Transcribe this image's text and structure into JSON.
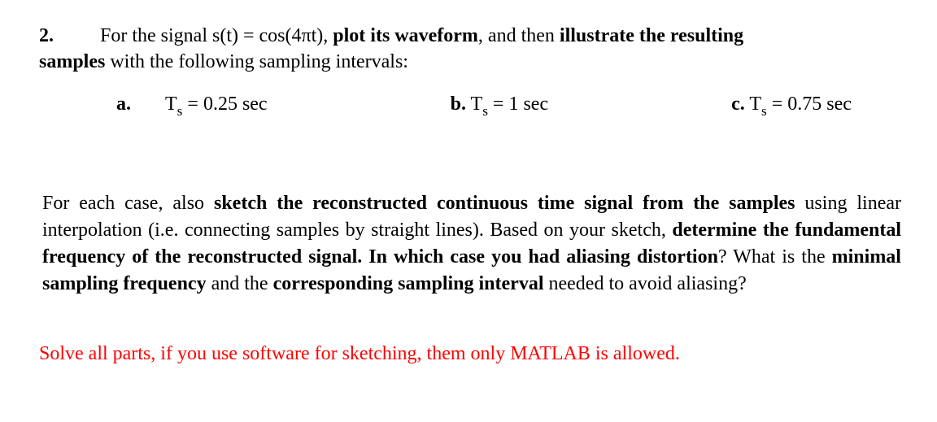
{
  "question": {
    "number": "2.",
    "line1_pre": "For the signal s(t) = cos(4πt), ",
    "line1_bold1": "plot its waveform",
    "line1_mid": ", and then ",
    "line1_bold2": "illustrate the resulting",
    "line2_bold": "samples",
    "line2_rest": " with the following sampling intervals:"
  },
  "options": {
    "a_label": "a.",
    "a_text_pre": "T",
    "a_text_sub": "s",
    "a_text_post": " = 0.25 sec",
    "b_label": "b.",
    "b_text_pre": " T",
    "b_text_sub": "s",
    "b_text_post": " = 1 sec",
    "c_label": "c.",
    "c_text_pre": " T",
    "c_text_sub": "s",
    "c_text_post": " = 0.75 sec"
  },
  "para2": {
    "t1": " For each case, also ",
    "b1": "sketch the reconstructed continuous time signal from the samples",
    "t2": " using linear interpolation (i.e. connecting samples by straight lines). Based on your sketch, ",
    "b2": "determine the fundamental frequency of the reconstructed signal. In which case you had aliasing distortion",
    "t3": "? What is the ",
    "b3": "minimal sampling frequency",
    "t4": " and the ",
    "b4": "corresponding sampling interval",
    "t5": " needed to avoid aliasing?"
  },
  "redline": "Solve all parts, if you use software for sketching, them only MATLAB is allowed.",
  "colors": {
    "text": "#000000",
    "red": "#ff0000",
    "background": "#ffffff"
  }
}
